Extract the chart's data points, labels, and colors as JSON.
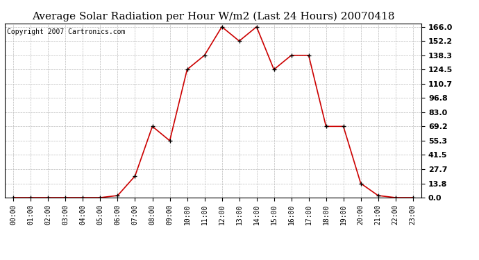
{
  "title": "Average Solar Radiation per Hour W/m2 (Last 24 Hours) 20070418",
  "copyright": "Copyright 2007 Cartronics.com",
  "hours": [
    "00:00",
    "01:00",
    "02:00",
    "03:00",
    "04:00",
    "05:00",
    "06:00",
    "07:00",
    "08:00",
    "09:00",
    "10:00",
    "11:00",
    "12:00",
    "13:00",
    "14:00",
    "15:00",
    "16:00",
    "17:00",
    "18:00",
    "19:00",
    "20:00",
    "21:00",
    "22:00",
    "23:00"
  ],
  "values": [
    0.0,
    0.0,
    0.0,
    0.0,
    0.0,
    0.0,
    2.0,
    21.0,
    69.2,
    55.3,
    124.5,
    138.3,
    166.0,
    152.2,
    166.0,
    124.5,
    138.3,
    138.3,
    69.2,
    69.2,
    13.8,
    2.0,
    0.0,
    0.0
  ],
  "yticks": [
    0.0,
    13.8,
    27.7,
    41.5,
    55.3,
    69.2,
    83.0,
    96.8,
    110.7,
    124.5,
    138.3,
    152.2,
    166.0
  ],
  "line_color": "#cc0000",
  "bg_color": "#ffffff",
  "grid_color": "#bbbbbb",
  "title_fontsize": 11,
  "copyright_fontsize": 7
}
